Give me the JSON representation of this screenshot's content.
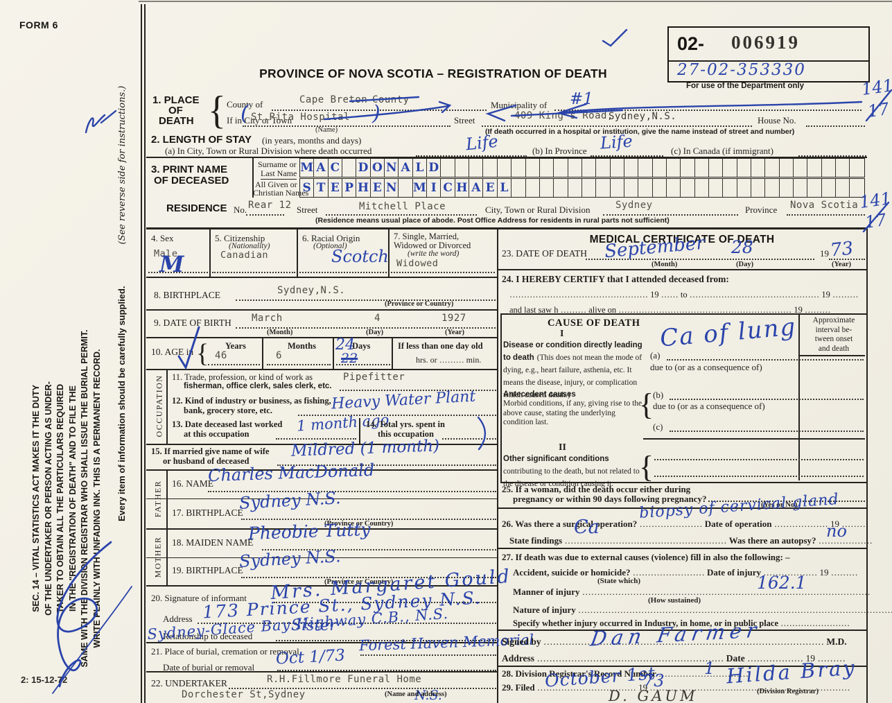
{
  "common": {
    "nineteen": "19",
    "prov_country": "(Province or Country)",
    "dueto": "due to (or as a consequence of)"
  },
  "meta": {
    "form_no": "FORM 6",
    "title": "PROVINCE OF NOVA SCOTIA – REGISTRATION OF DEATH",
    "plate": "2: 15-12-72"
  },
  "stamp": {
    "prefix": "02-",
    "serial": "006919",
    "hand_number": "27-02-353330",
    "caption": "For use of the Department only"
  },
  "margin": {
    "top_num": "141",
    "top_den": "17",
    "res_num": "141",
    "res_den": "17"
  },
  "sidebar": {
    "duty_lines": [
      "SEC. 14 – VITAL STATISTICS ACT MAKES IT THE DUTY",
      "OF THE UNDERTAKER OR PERSON ACTING AS UNDER-",
      "TAKER TO OBTAIN ALL THE PARTICULARS REQUIRED",
      "IN THE \"REGISTRATION OF DEATH\" AND TO FILE THE",
      "SAME WITH THE DIVISION REGISTRAR WHO SHALL ISSUE THE BURIAL PERMIT.",
      "WRITE PLAINLY WITH UNFADING INK. THIS IS A PERMANENT RECORD."
    ],
    "supplied": "Every item of information should be carefully supplied.",
    "see_reverse": "(See reverse side for instructions.)"
  },
  "s1": {
    "h1": "1. PLACE",
    "h2": "OF",
    "h3": "DEATH",
    "county_label": "County of",
    "county_value": "Cape Breton",
    "county_struck": "County",
    "municipality_label": "Municipality of",
    "municipality_value": "#1",
    "city_label": "If in City or Town",
    "city_value": "St.Rita Hospital",
    "city_caption": "(Name)",
    "street_label": "Street",
    "street_struck": "409 King's Road,",
    "street_value": "Sydney,N.S.",
    "house_label": "House No.",
    "note": "(If death occurred in a hospital or institution, give the name instead of street and number)"
  },
  "ink": {
    "paren_open": "(",
    "paren_close": ")"
  },
  "s2": {
    "title": "2. LENGTH OF STAY",
    "title_sub": "(in years, months and days)",
    "a_label": "(a) In City, Town or Rural Division where death occurred",
    "a_value": "Life",
    "b_label": "(b) In Province",
    "b_value": "Life",
    "c_label": "(c) In Canada (if immigrant)"
  },
  "s3": {
    "t1": "3. PRINT NAME",
    "t2": "OF DECEASED",
    "surname_label1": "Surname or",
    "surname_label2": "Last Name",
    "given_label1": "All Given or",
    "given_label2": "Christian Names",
    "surname_value": "MAC DONALD",
    "given_value": "STEPHEN MICHAEL"
  },
  "res": {
    "title": "RESIDENCE",
    "no_label": "No.",
    "no_value": "Rear 12",
    "street_label": "Street",
    "street_value": "Mitchell Place",
    "div_label": "City, Town or Rural Division",
    "div_value": "Sydney",
    "prov_label": "Province",
    "prov_value": "Nova Scotia",
    "note": "(Residence means usual place of abode. Post Office Address for residents in rural parts not sufficient)"
  },
  "s4": {
    "label": "4. Sex",
    "typed": "Male",
    "hand": "M"
  },
  "s5": {
    "label": "5. Citizenship",
    "sub": "(Nationality)",
    "value": "Canadian"
  },
  "s6": {
    "label": "6. Racial Origin",
    "sub": "(Optional)",
    "value": "Scotch"
  },
  "s7": {
    "l1": "7. Single, Married,",
    "l2": "Widowed or Divorced",
    "sub": "(write the word)",
    "value": "Widowed"
  },
  "s8": {
    "label": "8. BIRTHPLACE",
    "value": "Sydney,N.S."
  },
  "s9": {
    "label": "9. DATE OF BIRTH",
    "month": "March",
    "month_cap": "(Month)",
    "day": "4",
    "day_cap": "(Day)",
    "year": "1927",
    "year_cap": "(Year)"
  },
  "s10": {
    "label": "10. AGE in",
    "years_label": "Years",
    "years": "46",
    "months_label": "Months",
    "months": "6",
    "days_label": "Days",
    "days": "24",
    "days_struck": "22",
    "less_label": "If less than one day old",
    "hrs": "hrs. or",
    "min": "min."
  },
  "occ": {
    "strip": "OCCUPATION",
    "s11_l1": "11. Trade, profession, or kind of work as",
    "s11_l2": "fisherman, office clerk, sales clerk, etc.",
    "s11_value": "Pipefitter",
    "s12_l1": "12. Kind of industry or business, as fishing,",
    "s12_l2": "bank, grocery store, etc.",
    "s12_value": "Heavy Water Plant",
    "s13_l1": "13. Date deceased last worked",
    "s13_l2": "at this occupation",
    "s13_value": "1 month ago",
    "s14_l1": "14. Total yrs. spent in",
    "s14_l2": "this occupation"
  },
  "s15": {
    "l1": "15. If married give name of wife",
    "l2": "or husband of deceased",
    "value": "Mildred (1 month)"
  },
  "father": {
    "strip": "FATHER",
    "s16_label": "16. NAME",
    "s16_value": "Charles MacDonald",
    "s17_label": "17. BIRTHPLACE",
    "s17_value": "Sydney N.S."
  },
  "mother": {
    "strip": "MOTHER",
    "s18_label": "18. MAIDEN NAME",
    "s18_value": "Pheobie Tutty",
    "s19_label": "19. BIRTHPLACE",
    "s19_value": "Sydney N.S."
  },
  "s20": {
    "sig_label": "20. Signature of informant",
    "sig_value": "Mrs. Margaret Gould",
    "addr_label": "Address",
    "addr_value": "173 Prince St., Sydney N.S.",
    "rel_label": "Relationship to deceased",
    "rel_value": "Sister",
    "extra": "Sydney-Glace Bay Highway C.B., N.S."
  },
  "s21": {
    "place_label": "21. Place of burial, cremation or removal",
    "place_value": "Forest Haven Memorial",
    "date_label": "Date of burial or removal",
    "date_value": "Oct 1/73"
  },
  "s22": {
    "label": "22. UNDERTAKER",
    "value1": "R.H.Fillmore Funeral Home",
    "value2": "Dorchester St,Sydney",
    "value2_hand": "N.S.",
    "caption": "(Name and address)"
  },
  "med": {
    "title": "MEDICAL CERTIFICATE OF DEATH",
    "s23_label": "23. DATE OF DEATH",
    "s23_month": "September",
    "s23_month_cap": "(Month)",
    "s23_day": "28",
    "s23_day_cap": "(Day)",
    "s23_year": "73",
    "s23_year_cap": "(Year)",
    "s24_label": "24. I HEREBY CERTIFY that I attended deceased from:",
    "s24_to": "to",
    "s24_lastsaw": "and last saw h",
    "s24_alive": "alive on",
    "cause_title": "CAUSE OF DEATH",
    "approx_lines": [
      "Approximate",
      "interval be-",
      "tween onset",
      "and death"
    ],
    "roman1": "I",
    "disease_bold": "Disease or condition directly lead­ing to death",
    "disease_rest": "(This does not mean the mode of dying, e.g., heart fail­ure, asthenia, etc. It means the disease, injury, or complication which caused death.)",
    "a_label": "(a)",
    "a_value": "Ca of lung",
    "antecedent_bold": "Antecedent causes",
    "antecedent_rest": "Morbid conditions, if any, giving rise to the above cause, stating the underlying condition last.",
    "b_label": "(b)",
    "c_label": "(c)",
    "roman2": "II",
    "other_bold": "Other significant conditions",
    "other_rest": "contributing to the death, but not related to the disease or condi­tion causing it.",
    "s25_l1": "25. If a woman, did the death occur either during",
    "s25_l2": "pregnancy or within 90 days following pregnancy?",
    "s25_cap": "(Yes or No)",
    "s26_label": "26. Was there a surgical operation?",
    "s26_hand": "biopsy of cervical gland",
    "s26_date": "Date of operation",
    "s26_findings": "State findings",
    "s26_findings_value": "Ca",
    "s26_autopsy": "Was there an autopsy?",
    "s26_autopsy_value": "no",
    "s27_label": "27. If death was due to external causes (violence) fill in also the following: –",
    "s27_acc": "Accident, suicide or homicide?",
    "s27_statewhich": "(State which)",
    "s27_dateinj": "Date of injury",
    "s27_manner": "Manner of injury",
    "s27_manner_value": "162.1",
    "s27_how": "(How sustained)",
    "s27_nature": "Nature of injury",
    "s27_specify": "Specify whether injury occurred in Industry, in home, or in public place",
    "signed_label": "Signed by",
    "signed_value": "Dan Farmer",
    "md": "M.D.",
    "addr_label": "Address",
    "date_label": "Date",
    "s28_label": "28. Division Registrar's Record Number",
    "s28_value": "1",
    "s29_label": "29. Filed",
    "s29_date": "October 1st",
    "s29_year": "73",
    "s29_registrar": "Hilda Bray",
    "s29_cap": "(Division Registrar)",
    "s29_below": "D. GAUM"
  }
}
